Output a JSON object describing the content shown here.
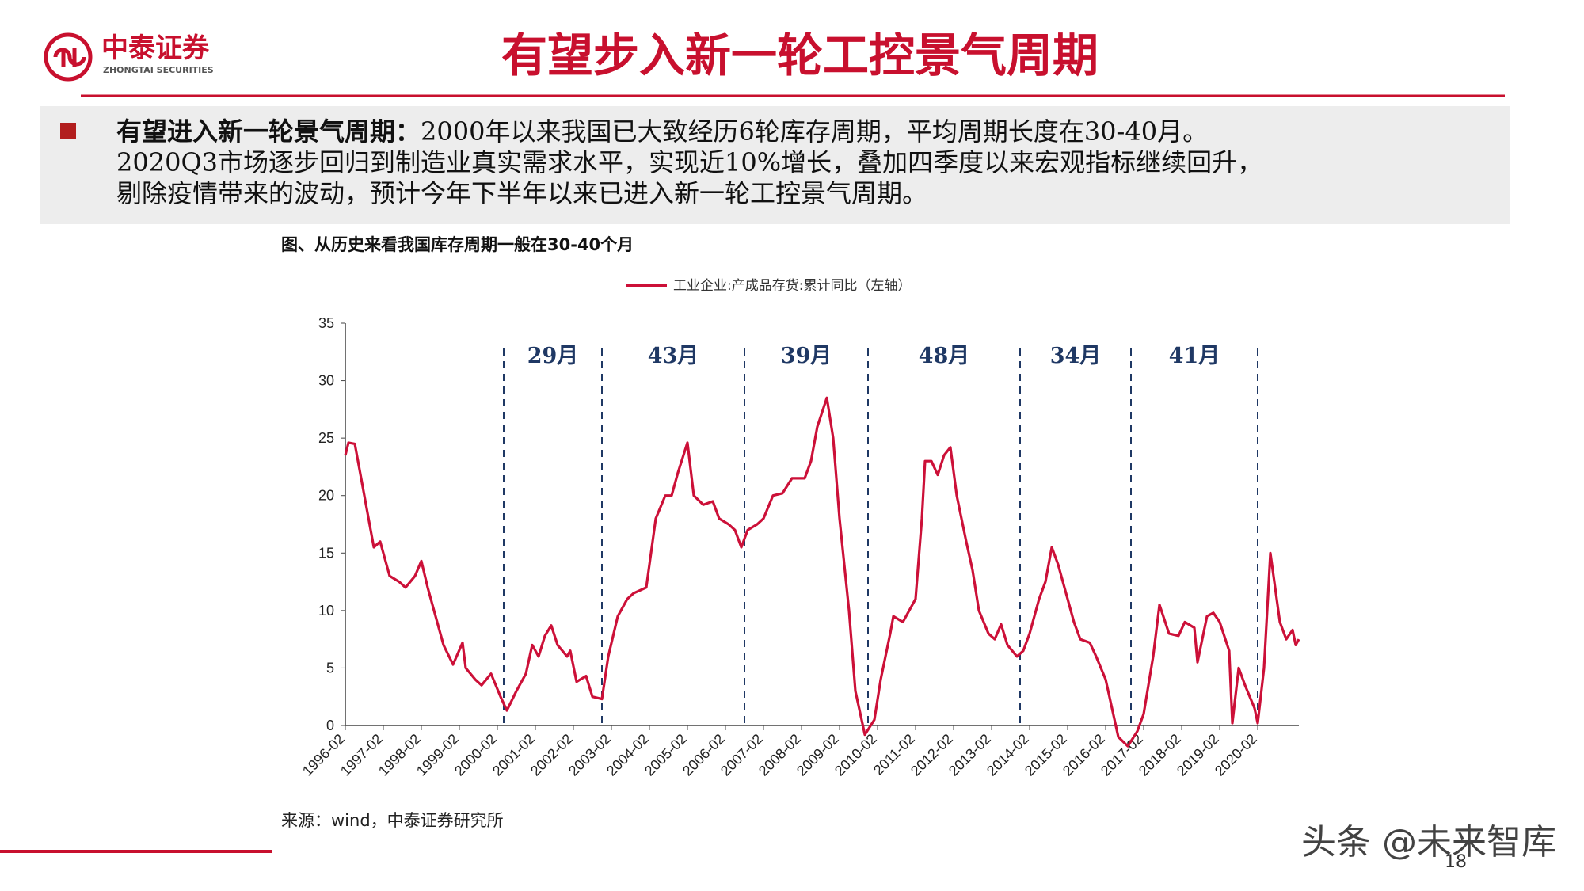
{
  "header": {
    "logo_name": "中泰证券",
    "logo_sub": "ZHONGTAI SECURITIES",
    "title": "有望步入新一轮工控景气周期"
  },
  "summary": {
    "lead": "有望进入新一轮景气周期：",
    "lines": [
      "2000年以来我国已大致经历6轮库存周期，平均周期长度在30-40月。",
      "2020Q3市场逐步回归到制造业真实需求水平，实现近10%增长，叠加四季度以来宏观指标继续回升，",
      "剔除疫情带来的波动，预计今年下半年以来已进入新一轮工控景气周期。"
    ]
  },
  "chart_data": {
    "type": "line",
    "title": "图、从历史来看我国库存周期一般在30-40个月",
    "source": "来源：wind，中泰证券研究所",
    "x": [
      "1996-02",
      "1996-03",
      "1996-05",
      "1996-08",
      "1996-11",
      "1997-01",
      "1997-04",
      "1997-07",
      "1997-09",
      "1997-12",
      "1998-02",
      "1998-04",
      "1998-07",
      "1998-09",
      "1998-12",
      "1999-03",
      "1999-04",
      "1999-07",
      "1999-09",
      "1999-12",
      "2000-03",
      "2000-05",
      "2000-08",
      "2000-11",
      "2001-01",
      "2001-03",
      "2001-05",
      "2001-07",
      "2001-09",
      "2001-12",
      "2002-01",
      "2002-03",
      "2002-06",
      "2002-08",
      "2002-11",
      "2003-01",
      "2003-04",
      "2003-07",
      "2003-09",
      "2004-01",
      "2004-04",
      "2004-07",
      "2004-09",
      "2004-11",
      "2005-02",
      "2005-04",
      "2005-07",
      "2005-10",
      "2005-12",
      "2006-03",
      "2006-05",
      "2006-07",
      "2006-09",
      "2006-12",
      "2007-02",
      "2007-05",
      "2007-08",
      "2007-11",
      "2008-03",
      "2008-05",
      "2008-07",
      "2008-10",
      "2008-12",
      "2009-02",
      "2009-05",
      "2009-07",
      "2009-10",
      "2010-01",
      "2010-03",
      "2010-06",
      "2010-07",
      "2010-10",
      "2010-12",
      "2011-02",
      "2011-04",
      "2011-05",
      "2011-07",
      "2011-09",
      "2011-11",
      "2012-01",
      "2012-03",
      "2012-06",
      "2012-08",
      "2012-10",
      "2013-01",
      "2013-03",
      "2013-05",
      "2013-07",
      "2013-10",
      "2013-12",
      "2014-02",
      "2014-05",
      "2014-07",
      "2014-09",
      "2014-11",
      "2015-02",
      "2015-04",
      "2015-06",
      "2015-09",
      "2015-11",
      "2016-02",
      "2016-04",
      "2016-06",
      "2016-09",
      "2016-12",
      "2017-02",
      "2017-05",
      "2017-07",
      "2017-10",
      "2018-01",
      "2018-03",
      "2018-06",
      "2018-07",
      "2018-10",
      "2018-12",
      "2019-02",
      "2019-05",
      "2019-06",
      "2019-08",
      "2019-10",
      "2020-01",
      "2020-02",
      "2020-04",
      "2020-06",
      "2020-09",
      "2020-11",
      "2021-01",
      "2021-02",
      "2021-03"
    ],
    "series": [
      {
        "name": "工业企业:产成品存货:累计同比（左轴）",
        "color": "#cc1038",
        "values": [
          23.5,
          24.6,
          24.5,
          20,
          15.5,
          16,
          13,
          12.5,
          12,
          13,
          14.3,
          12,
          9,
          7,
          5.3,
          7.2,
          5,
          4,
          3.5,
          4.5,
          2.5,
          1.3,
          3,
          4.5,
          7,
          6,
          7.8,
          8.7,
          7,
          6,
          6.5,
          3.8,
          4.3,
          2.5,
          2.3,
          6,
          9.5,
          11,
          11.5,
          12,
          18,
          20,
          20,
          22,
          24.6,
          20,
          19.2,
          19.5,
          18,
          17.5,
          17,
          15.5,
          17,
          17.5,
          18,
          20,
          20.2,
          21.5,
          21.5,
          23,
          26,
          28.5,
          25,
          18,
          10,
          3,
          -0.8,
          0.5,
          4,
          8,
          9.5,
          9,
          10,
          11,
          18,
          23,
          23,
          21.8,
          23.5,
          24.2,
          20,
          16,
          13.5,
          10,
          8,
          7.5,
          8.8,
          7,
          6,
          6.5,
          8,
          11,
          12.5,
          15.5,
          14,
          11,
          9,
          7.5,
          7.2,
          6,
          4,
          1.5,
          -1,
          -1.8,
          -0.5,
          1,
          6,
          10.5,
          8,
          7.8,
          9,
          8.5,
          5.5,
          9.5,
          9.8,
          9,
          6.5,
          0.2,
          5,
          3.5,
          1.5,
          0.2,
          5,
          15,
          9,
          7.5,
          8.3,
          7,
          7.5
        ]
      }
    ],
    "xlim": [
      "1996-02",
      "2021-03"
    ],
    "xticks": [
      "1996-02",
      "1997-02",
      "1998-02",
      "1999-02",
      "2000-02",
      "2001-02",
      "2002-02",
      "2003-02",
      "2004-02",
      "2005-02",
      "2006-02",
      "2007-02",
      "2008-02",
      "2009-02",
      "2010-02",
      "2011-02",
      "2012-02",
      "2013-02",
      "2014-02",
      "2015-02",
      "2016-02",
      "2017-02",
      "2018-02",
      "2019-02",
      "2020-02"
    ],
    "ylim": [
      0,
      35
    ],
    "yticks": [
      0,
      5,
      10,
      15,
      20,
      25,
      30,
      35
    ],
    "grid": false,
    "legend": "top",
    "annotations": {
      "dividers": [
        "2000-04",
        "2002-11",
        "2006-08",
        "2009-11",
        "2013-11",
        "2016-10",
        "2020-02"
      ],
      "color": "#1f3864",
      "labels": [
        "29月",
        "43月",
        "39月",
        "48月",
        "34月",
        "41月"
      ]
    }
  },
  "page_number": "18",
  "watermark": "头条 @未来智库"
}
